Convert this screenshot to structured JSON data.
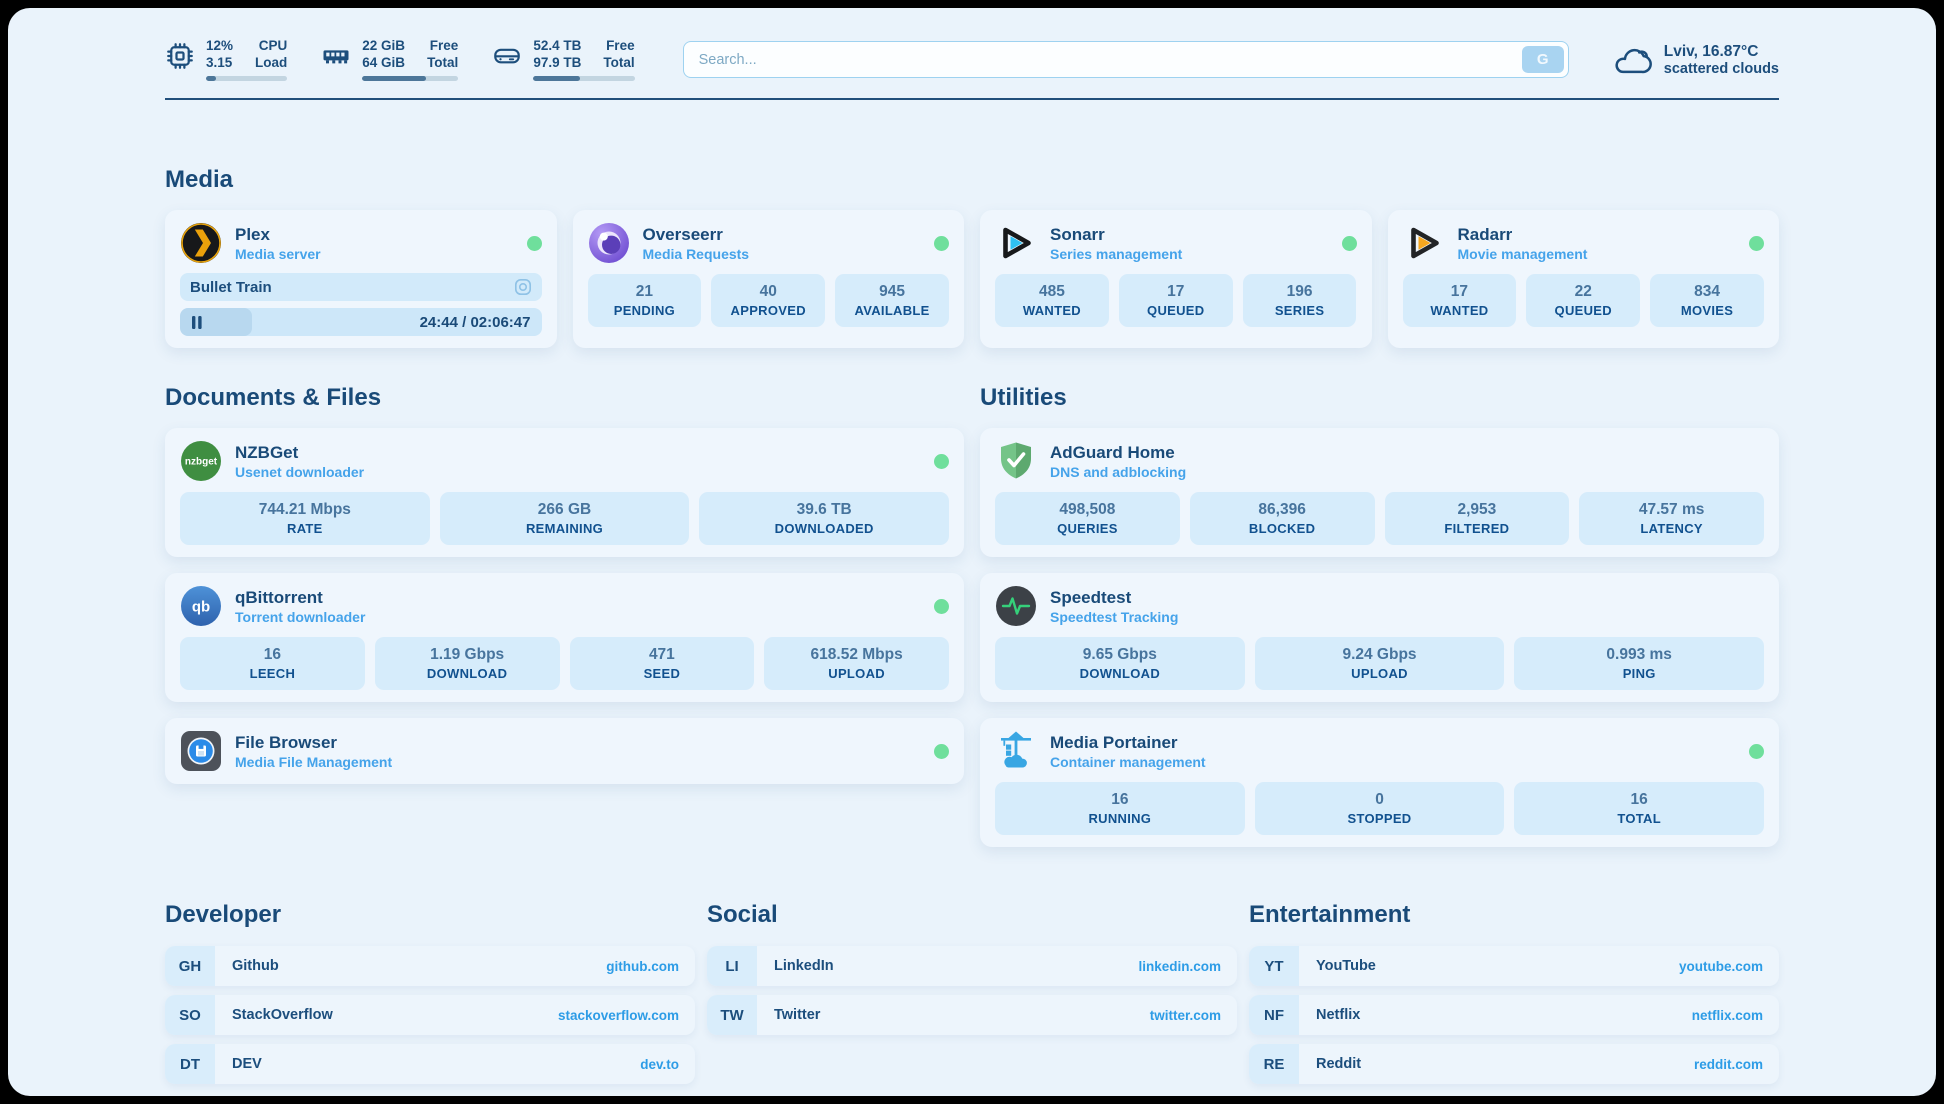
{
  "colors": {
    "page_bg": "#eaf3fb",
    "card_bg": "#eff6fd",
    "stat_bg": "#d6ecfb",
    "navy_text": "#1d4e7c",
    "subtitle_blue": "#45a3ea",
    "link_blue": "#2d9ce6",
    "status_green": "#6fdf9c",
    "progress_fill": "#4d7699"
  },
  "header": {
    "stats": [
      {
        "icon": "cpu-icon",
        "value_top": "12%",
        "value_bottom": "3.15",
        "label_top": "CPU",
        "label_bottom": "Load",
        "progress": 12
      },
      {
        "icon": "ram-icon",
        "value_top": "22 GiB",
        "value_bottom": "64 GiB",
        "label_top": "Free",
        "label_bottom": "Total",
        "progress": 66
      },
      {
        "icon": "disk-icon",
        "value_top": "52.4 TB",
        "value_bottom": "97.9 TB",
        "label_top": "Free",
        "label_bottom": "Total",
        "progress": 46
      }
    ],
    "search": {
      "placeholder": "Search...",
      "button": "G"
    },
    "weather": {
      "icon": "cloud-icon",
      "line1": "Lviv, 16.87°C",
      "line2": "scattered clouds"
    }
  },
  "sections": {
    "media": {
      "title": "Media",
      "apps": [
        {
          "icon": "plex-icon",
          "name": "Plex",
          "subtitle": "Media server",
          "online": true,
          "session": {
            "title": "Bullet Train",
            "time": "24:44 / 02:06:47",
            "progress": 20
          }
        },
        {
          "icon": "overseerr-icon",
          "name": "Overseerr",
          "subtitle": "Media Requests",
          "online": true,
          "stats": [
            {
              "value": "21",
              "label": "PENDING"
            },
            {
              "value": "40",
              "label": "APPROVED"
            },
            {
              "value": "945",
              "label": "AVAILABLE"
            }
          ]
        },
        {
          "icon": "sonarr-icon",
          "name": "Sonarr",
          "subtitle": "Series management",
          "online": true,
          "stats": [
            {
              "value": "485",
              "label": "WANTED"
            },
            {
              "value": "17",
              "label": "QUEUED"
            },
            {
              "value": "196",
              "label": "SERIES"
            }
          ]
        },
        {
          "icon": "radarr-icon",
          "name": "Radarr",
          "subtitle": "Movie management",
          "online": true,
          "stats": [
            {
              "value": "17",
              "label": "WANTED"
            },
            {
              "value": "22",
              "label": "QUEUED"
            },
            {
              "value": "834",
              "label": "MOVIES"
            }
          ]
        }
      ]
    },
    "documents": {
      "title": "Documents & Files",
      "apps": [
        {
          "icon": "nzbget-icon",
          "name": "NZBGet",
          "subtitle": "Usenet downloader",
          "online": true,
          "icon_text": "nzbget",
          "stats": [
            {
              "value": "744.21 Mbps",
              "label": "RATE"
            },
            {
              "value": "266 GB",
              "label": "REMAINING"
            },
            {
              "value": "39.6 TB",
              "label": "DOWNLOADED"
            }
          ]
        },
        {
          "icon": "qbittorrent-icon",
          "name": "qBittorrent",
          "subtitle": "Torrent downloader",
          "online": true,
          "icon_text": "qb",
          "stats": [
            {
              "value": "16",
              "label": "LEECH"
            },
            {
              "value": "1.19 Gbps",
              "label": "DOWNLOAD"
            },
            {
              "value": "471",
              "label": "SEED"
            },
            {
              "value": "618.52 Mbps",
              "label": "UPLOAD"
            }
          ]
        },
        {
          "icon": "filebrowser-icon",
          "name": "File Browser",
          "subtitle": "Media File Management",
          "online": true
        }
      ]
    },
    "utilities": {
      "title": "Utilities",
      "apps": [
        {
          "icon": "adguard-icon",
          "name": "AdGuard Home",
          "subtitle": "DNS and adblocking",
          "online": false,
          "stats": [
            {
              "value": "498,508",
              "label": "QUERIES"
            },
            {
              "value": "86,396",
              "label": "BLOCKED"
            },
            {
              "value": "2,953",
              "label": "FILTERED"
            },
            {
              "value": "47.57 ms",
              "label": "LATENCY"
            }
          ]
        },
        {
          "icon": "speedtest-icon",
          "name": "Speedtest",
          "subtitle": "Speedtest Tracking",
          "online": false,
          "stats": [
            {
              "value": "9.65 Gbps",
              "label": "DOWNLOAD"
            },
            {
              "value": "9.24 Gbps",
              "label": "UPLOAD"
            },
            {
              "value": "0.993 ms",
              "label": "PING"
            }
          ]
        },
        {
          "icon": "portainer-icon",
          "name": "Media Portainer",
          "subtitle": "Container management",
          "online": true,
          "stats": [
            {
              "value": "16",
              "label": "RUNNING"
            },
            {
              "value": "0",
              "label": "STOPPED"
            },
            {
              "value": "16",
              "label": "TOTAL"
            }
          ]
        }
      ]
    },
    "bookmarks": [
      {
        "title": "Developer",
        "links": [
          {
            "tag": "GH",
            "name": "Github",
            "url": "github.com"
          },
          {
            "tag": "SO",
            "name": "StackOverflow",
            "url": "stackoverflow.com"
          },
          {
            "tag": "DT",
            "name": "DEV",
            "url": "dev.to"
          }
        ]
      },
      {
        "title": "Social",
        "links": [
          {
            "tag": "LI",
            "name": "LinkedIn",
            "url": "linkedin.com"
          },
          {
            "tag": "TW",
            "name": "Twitter",
            "url": "twitter.com"
          }
        ]
      },
      {
        "title": "Entertainment",
        "links": [
          {
            "tag": "YT",
            "name": "YouTube",
            "url": "youtube.com"
          },
          {
            "tag": "NF",
            "name": "Netflix",
            "url": "netflix.com"
          },
          {
            "tag": "RE",
            "name": "Reddit",
            "url": "reddit.com"
          }
        ]
      }
    ]
  }
}
